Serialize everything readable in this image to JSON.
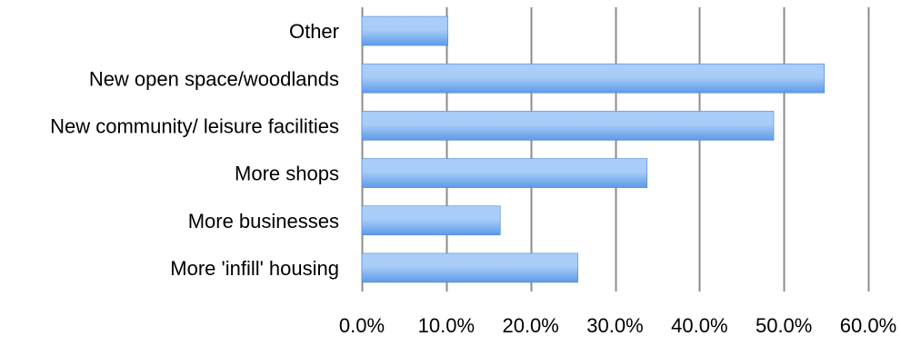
{
  "chart_data": {
    "type": "bar",
    "orientation": "horizontal",
    "title": "",
    "xlabel": "",
    "ylabel": "",
    "categories": [
      "Other",
      "New open space/woodlands",
      "New community/ leisure facilities",
      "More shops",
      "More businesses",
      "More 'infill' housing"
    ],
    "values": [
      10.2,
      54.8,
      48.8,
      33.8,
      16.4,
      25.6
    ],
    "xlim": [
      0,
      60
    ],
    "xticks": [
      0,
      10,
      20,
      30,
      40,
      50,
      60
    ],
    "xtick_labels": [
      "0.0%",
      "10.0%",
      "20.0%",
      "30.0%",
      "40.0%",
      "50.0%",
      "60.0%"
    ],
    "grid": "vertical",
    "legend": "none",
    "colors": {
      "bar_top": "#a9cdf8",
      "bar_bottom": "#5d9ae8",
      "bar_stroke": "#4f86cf",
      "grid": "#8c8c8c"
    }
  }
}
